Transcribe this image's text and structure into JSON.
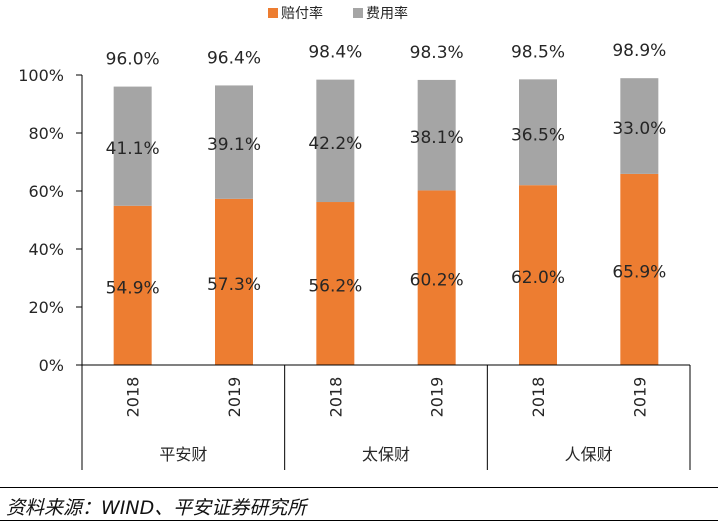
{
  "chart_data": {
    "type": "bar",
    "stacked": true,
    "groups": [
      {
        "label": "平安财",
        "categories": [
          "2018",
          "2019"
        ]
      },
      {
        "label": "太保财",
        "categories": [
          "2018",
          "2019"
        ]
      },
      {
        "label": "人保财",
        "categories": [
          "2018",
          "2019"
        ]
      }
    ],
    "series": [
      {
        "name": "赔付率",
        "color": "#ED7D31",
        "values": [
          54.9,
          57.3,
          56.2,
          60.2,
          62.0,
          65.9
        ],
        "labels": [
          "54.9%",
          "57.3%",
          "56.2%",
          "60.2%",
          "62.0%",
          "65.9%"
        ]
      },
      {
        "name": "费用率",
        "color": "#A5A5A5",
        "values": [
          41.1,
          39.1,
          42.2,
          38.1,
          36.5,
          33.0
        ],
        "labels": [
          "41.1%",
          "39.1%",
          "42.2%",
          "38.1%",
          "36.5%",
          "33.0%"
        ]
      }
    ],
    "totals": [
      "96.0%",
      "96.4%",
      "98.4%",
      "98.3%",
      "98.5%",
      "98.9%"
    ],
    "total_values": [
      96.0,
      96.4,
      98.4,
      98.3,
      98.5,
      98.9
    ],
    "yticks": [
      "0%",
      "20%",
      "40%",
      "60%",
      "80%",
      "100%"
    ],
    "ylim": [
      0,
      100
    ],
    "legend_position": "top-center"
  },
  "source_text": "资料来源：WIND、平安证券研究所"
}
